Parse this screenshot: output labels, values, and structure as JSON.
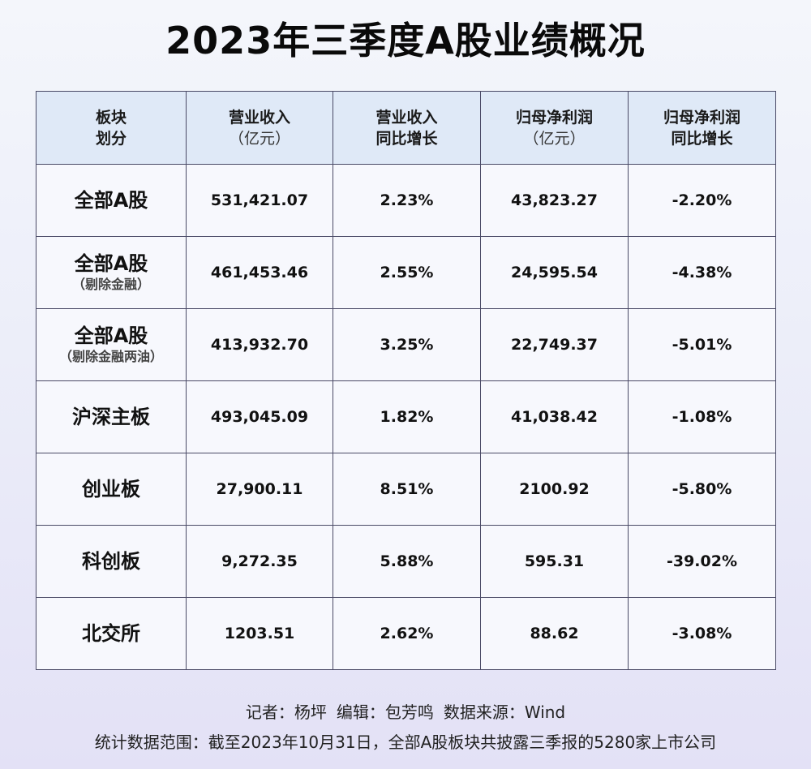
{
  "title": "2023年三季度A股业绩概况",
  "chart_data": {
    "type": "table",
    "columns": [
      {
        "line1": "板块",
        "line2": "划分"
      },
      {
        "line1": "营业收入",
        "line2": "（亿元）"
      },
      {
        "line1": "营业收入",
        "line2": "同比增长"
      },
      {
        "line1": "归母净利润",
        "line2": "（亿元）"
      },
      {
        "line1": "归母净利润",
        "line2": "同比增长"
      }
    ],
    "rows": [
      {
        "category": "全部A股",
        "note": "",
        "revenue": "531,421.07",
        "revenue_yoy": "2.23%",
        "net_profit": "43,823.27",
        "net_profit_yoy": "-2.20%"
      },
      {
        "category": "全部A股",
        "note": "（剔除金融）",
        "revenue": "461,453.46",
        "revenue_yoy": "2.55%",
        "net_profit": "24,595.54",
        "net_profit_yoy": "-4.38%"
      },
      {
        "category": "全部A股",
        "note": "（剔除金融两油）",
        "revenue": "413,932.70",
        "revenue_yoy": "3.25%",
        "net_profit": "22,749.37",
        "net_profit_yoy": "-5.01%"
      },
      {
        "category": "沪深主板",
        "note": "",
        "revenue": "493,045.09",
        "revenue_yoy": "1.82%",
        "net_profit": "41,038.42",
        "net_profit_yoy": "-1.08%"
      },
      {
        "category": "创业板",
        "note": "",
        "revenue": "27,900.11",
        "revenue_yoy": "8.51%",
        "net_profit": "2100.92",
        "net_profit_yoy": "-5.80%"
      },
      {
        "category": "科创板",
        "note": "",
        "revenue": "9,272.35",
        "revenue_yoy": "5.88%",
        "net_profit": "595.31",
        "net_profit_yoy": "-39.02%"
      },
      {
        "category": "北交所",
        "note": "",
        "revenue": "1203.51",
        "revenue_yoy": "2.62%",
        "net_profit": "88.62",
        "net_profit_yoy": "-3.08%"
      }
    ]
  },
  "footer": {
    "reporter": "记者：杨坪",
    "editor": "编辑：包芳鸣",
    "source": "数据来源：Wind",
    "scope": "统计数据范围：截至2023年10月31日，全部A股板块共披露三季报的5280家上市公司"
  },
  "colors": {
    "header_bg": "#dfe9f7",
    "cell_bg": "#f7f8fd",
    "border": "#4a4a66"
  }
}
